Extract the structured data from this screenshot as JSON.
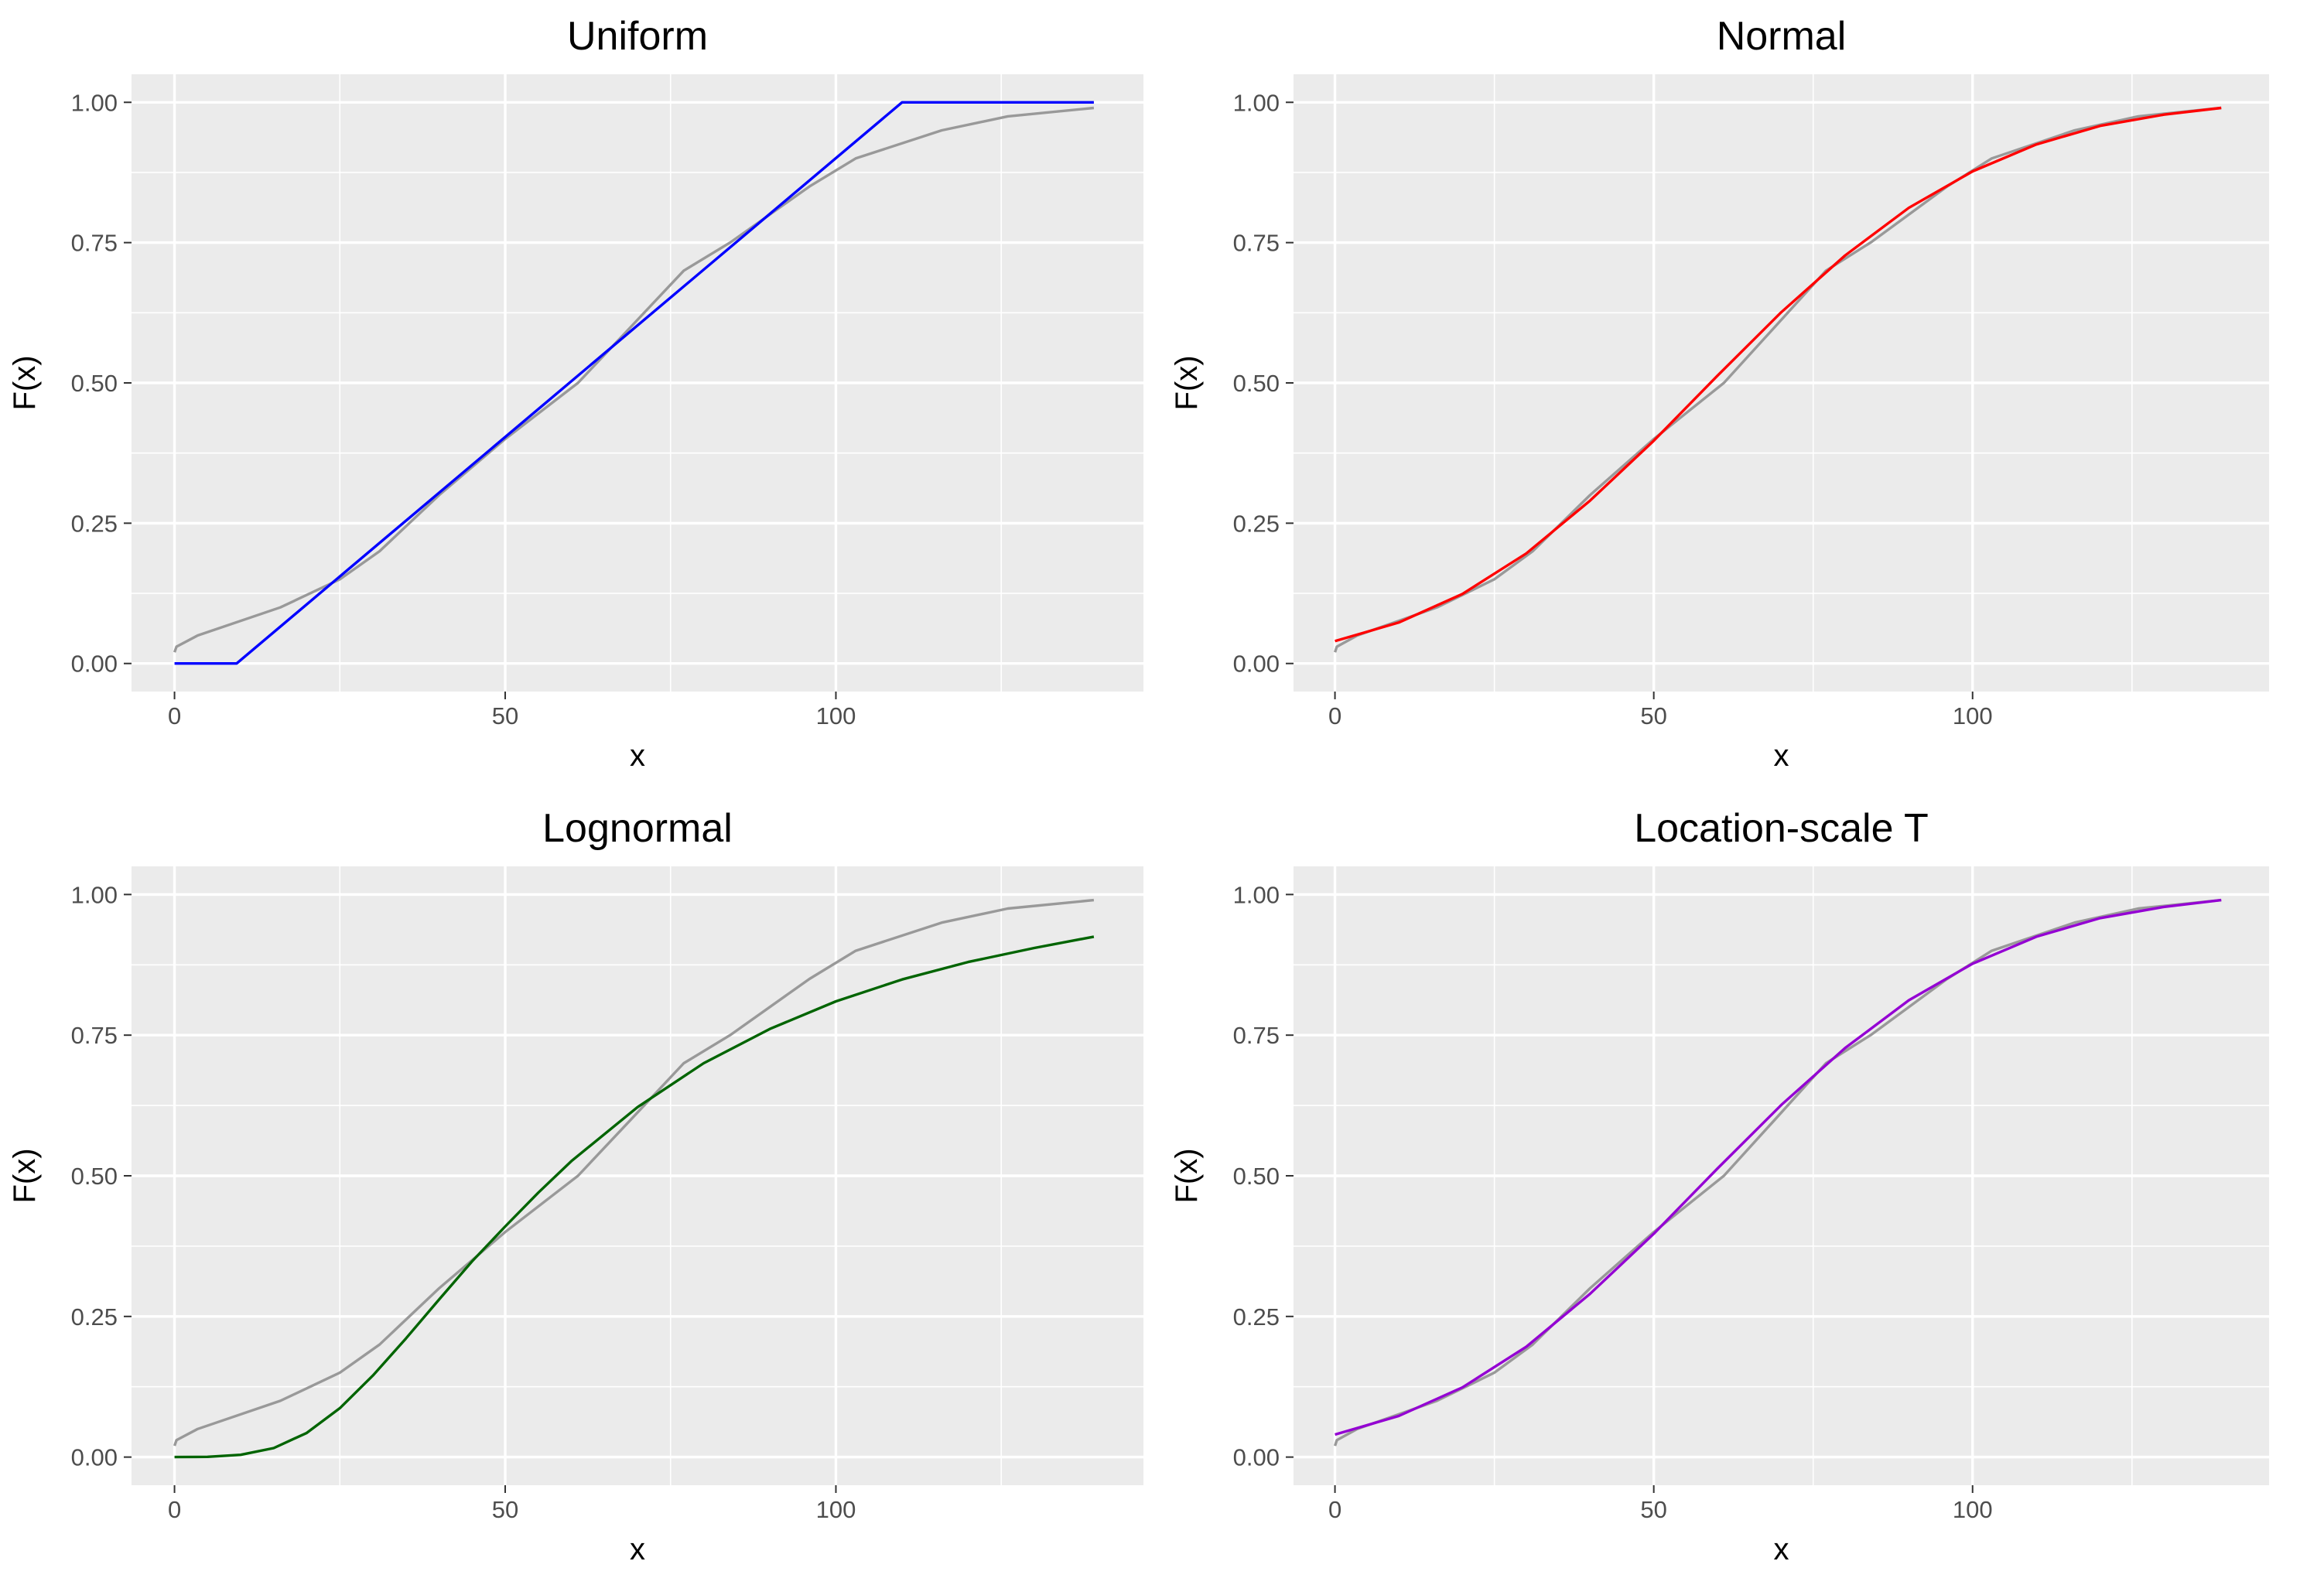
{
  "chart_data": [
    {
      "type": "line",
      "title": "Uniform",
      "xlabel": "x",
      "ylabel": "F(x)",
      "xlim": [
        -6.5,
        146.5
      ],
      "ylim": [
        -0.05,
        1.05
      ],
      "x_ticks": [
        0,
        50,
        100
      ],
      "y_ticks": [
        0,
        0.25,
        0.5,
        0.75,
        1
      ],
      "y_tick_labels": [
        "0.00",
        "0.25",
        "0.50",
        "0.75",
        "1.00"
      ],
      "grid": true,
      "series": [
        {
          "role": "empirical",
          "color": "#999999",
          "x": [
            0,
            0.3,
            3.5,
            16,
            25,
            31,
            40,
            50,
            61,
            69,
            77,
            84,
            96,
            103,
            116,
            126,
            139
          ],
          "y": [
            0.02,
            0.03,
            0.05,
            0.1,
            0.15,
            0.2,
            0.3,
            0.4,
            0.5,
            0.6,
            0.7,
            0.75,
            0.85,
            0.9,
            0.95,
            0.975,
            0.99
          ]
        },
        {
          "role": "fitted",
          "color": "#0000ff",
          "x": [
            0,
            9.4,
            110,
            139
          ],
          "y": [
            0,
            0,
            1,
            1
          ]
        }
      ]
    },
    {
      "type": "line",
      "title": "Normal",
      "xlabel": "x",
      "ylabel": "F(x)",
      "xlim": [
        -6.5,
        146.5
      ],
      "ylim": [
        -0.05,
        1.05
      ],
      "x_ticks": [
        0,
        50,
        100
      ],
      "y_ticks": [
        0,
        0.25,
        0.5,
        0.75,
        1
      ],
      "y_tick_labels": [
        "0.00",
        "0.25",
        "0.50",
        "0.75",
        "1.00"
      ],
      "grid": true,
      "series": [
        {
          "role": "empirical",
          "color": "#999999",
          "x": [
            0,
            0.3,
            3.5,
            16,
            25,
            31,
            40,
            50,
            61,
            69,
            77,
            84,
            96,
            103,
            116,
            126,
            139
          ],
          "y": [
            0.02,
            0.03,
            0.05,
            0.1,
            0.15,
            0.2,
            0.3,
            0.4,
            0.5,
            0.6,
            0.7,
            0.75,
            0.85,
            0.9,
            0.95,
            0.975,
            0.99
          ]
        },
        {
          "role": "fitted",
          "color": "#ff0000",
          "x": [
            0,
            10,
            20,
            30,
            40,
            50,
            60,
            70,
            80,
            90,
            100,
            110,
            120,
            130,
            139
          ],
          "y": [
            0.04,
            0.073,
            0.124,
            0.196,
            0.29,
            0.397,
            0.513,
            0.626,
            0.727,
            0.812,
            0.877,
            0.925,
            0.958,
            0.978,
            0.99
          ]
        }
      ]
    },
    {
      "type": "line",
      "title": "Lognormal",
      "xlabel": "x",
      "ylabel": "F(x)",
      "xlim": [
        -6.5,
        146.5
      ],
      "ylim": [
        -0.05,
        1.05
      ],
      "x_ticks": [
        0,
        50,
        100
      ],
      "y_ticks": [
        0,
        0.25,
        0.5,
        0.75,
        1
      ],
      "y_tick_labels": [
        "0.00",
        "0.25",
        "0.50",
        "0.75",
        "1.00"
      ],
      "grid": true,
      "series": [
        {
          "role": "empirical",
          "color": "#999999",
          "x": [
            0,
            0.3,
            3.5,
            16,
            25,
            31,
            40,
            50,
            61,
            69,
            77,
            84,
            96,
            103,
            116,
            126,
            139
          ],
          "y": [
            0.02,
            0.03,
            0.05,
            0.1,
            0.15,
            0.2,
            0.3,
            0.4,
            0.5,
            0.6,
            0.7,
            0.75,
            0.85,
            0.9,
            0.95,
            0.975,
            0.99
          ]
        },
        {
          "role": "fitted",
          "color": "#006400",
          "x": [
            0,
            5,
            10,
            15,
            20,
            25,
            30,
            35,
            40,
            45,
            50,
            55,
            60,
            70,
            80,
            90,
            100,
            110,
            120,
            130,
            139
          ],
          "y": [
            0,
            0.0005,
            0.004,
            0.016,
            0.043,
            0.087,
            0.145,
            0.211,
            0.28,
            0.348,
            0.41,
            0.47,
            0.526,
            0.622,
            0.7,
            0.761,
            0.81,
            0.849,
            0.88,
            0.905,
            0.925
          ]
        }
      ]
    },
    {
      "type": "line",
      "title": "Location-scale T",
      "xlabel": "x",
      "ylabel": "F(x)",
      "xlim": [
        -6.5,
        146.5
      ],
      "ylim": [
        -0.05,
        1.05
      ],
      "x_ticks": [
        0,
        50,
        100
      ],
      "y_ticks": [
        0,
        0.25,
        0.5,
        0.75,
        1
      ],
      "y_tick_labels": [
        "0.00",
        "0.25",
        "0.50",
        "0.75",
        "1.00"
      ],
      "grid": true,
      "series": [
        {
          "role": "empirical",
          "color": "#999999",
          "x": [
            0,
            0.3,
            3.5,
            16,
            25,
            31,
            40,
            50,
            61,
            69,
            77,
            84,
            96,
            103,
            116,
            126,
            139
          ],
          "y": [
            0.02,
            0.03,
            0.05,
            0.1,
            0.15,
            0.2,
            0.3,
            0.4,
            0.5,
            0.6,
            0.7,
            0.75,
            0.85,
            0.9,
            0.95,
            0.975,
            0.99
          ]
        },
        {
          "role": "fitted",
          "color": "#9400d3",
          "x": [
            0,
            10,
            20,
            30,
            40,
            50,
            60,
            70,
            80,
            90,
            100,
            110,
            120,
            130,
            139
          ],
          "y": [
            0.04,
            0.073,
            0.124,
            0.196,
            0.29,
            0.397,
            0.513,
            0.626,
            0.727,
            0.812,
            0.877,
            0.925,
            0.958,
            0.978,
            0.99
          ]
        }
      ]
    }
  ]
}
